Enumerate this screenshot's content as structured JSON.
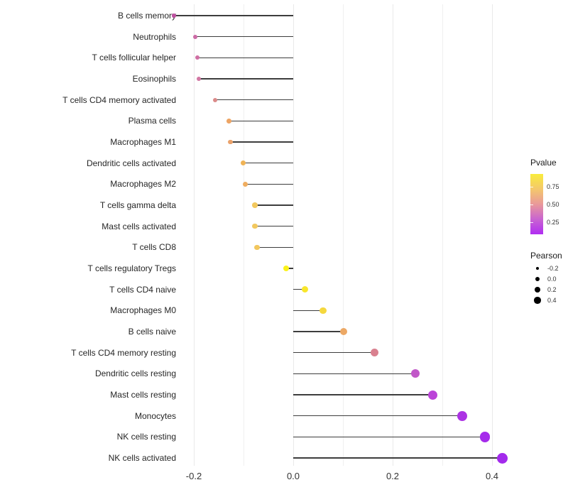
{
  "chart_data": {
    "type": "scatter",
    "style": "horizontal lollipop (stems from zero to point; point color = Pvalue, point size = Pearson)",
    "title": "",
    "xlabel": "",
    "ylabel": "",
    "xlim": [
      -0.27,
      0.47
    ],
    "grid": "vertical gridlines only, light gray, white background",
    "x_ticks": [
      {
        "label": "-0.2",
        "value": -0.2
      },
      {
        "label": "0.0",
        "value": 0.0
      },
      {
        "label": "0.2",
        "value": 0.2
      },
      {
        "label": "0.4",
        "value": 0.4
      }
    ],
    "grid_values": [
      -0.2,
      -0.1,
      0.0,
      0.1,
      0.2,
      0.3,
      0.4
    ],
    "categories": [
      "B cells memory",
      "Neutrophils",
      "T cells follicular helper",
      "Eosinophils",
      "T cells CD4 memory activated",
      "Plasma cells",
      "Macrophages M1",
      "Dendritic cells activated",
      "Macrophages M2",
      "T cells gamma delta",
      "Mast cells activated",
      "T cells CD8",
      "T cells regulatory  Tregs",
      "T cells CD4 naive",
      "Macrophages M0",
      "B cells naive",
      "T cells CD4 memory resting",
      "Dendritic cells resting",
      "Mast cells resting",
      "Monocytes",
      "NK cells resting",
      "NK cells activated"
    ],
    "series": [
      {
        "name": "Pearson",
        "values": [
          -0.24,
          -0.197,
          -0.193,
          -0.19,
          -0.157,
          -0.129,
          -0.126,
          -0.101,
          -0.097,
          -0.077,
          -0.077,
          -0.073,
          -0.014,
          0.024,
          0.06,
          0.101,
          0.164,
          0.246,
          0.281,
          0.34,
          0.386,
          0.421
        ]
      },
      {
        "name": "Pvalue (estimated from color scale)",
        "values": [
          0.3,
          0.36,
          0.37,
          0.38,
          0.47,
          0.58,
          0.57,
          0.65,
          0.63,
          0.72,
          0.72,
          0.71,
          0.93,
          0.88,
          0.8,
          0.6,
          0.45,
          0.25,
          0.2,
          0.12,
          0.08,
          0.06
        ]
      }
    ],
    "rows": [
      {
        "label": "B cells memory",
        "pearson": -0.24,
        "pvalue": 0.3,
        "color": "#BE51A0"
      },
      {
        "label": "Neutrophils",
        "pearson": -0.197,
        "pvalue": 0.36,
        "color": "#CC6BA6"
      },
      {
        "label": "T cells follicular helper",
        "pearson": -0.193,
        "pvalue": 0.37,
        "color": "#D06FA4"
      },
      {
        "label": "Eosinophils",
        "pearson": -0.19,
        "pvalue": 0.38,
        "color": "#D278A3"
      },
      {
        "label": "T cells CD4 memory activated",
        "pearson": -0.157,
        "pvalue": 0.47,
        "color": "#DB8A89"
      },
      {
        "label": "Plasma cells",
        "pearson": -0.129,
        "pvalue": 0.58,
        "color": "#EDA464"
      },
      {
        "label": "Macrophages M1",
        "pearson": -0.126,
        "pvalue": 0.57,
        "color": "#EAA26B"
      },
      {
        "label": "Dendritic cells activated",
        "pearson": -0.101,
        "pvalue": 0.65,
        "color": "#F0B355"
      },
      {
        "label": "Macrophages M2",
        "pearson": -0.097,
        "pvalue": 0.63,
        "color": "#EFAD60"
      },
      {
        "label": "T cells gamma delta",
        "pearson": -0.077,
        "pvalue": 0.72,
        "color": "#F2C85E"
      },
      {
        "label": "Mast cells activated",
        "pearson": -0.077,
        "pvalue": 0.72,
        "color": "#F2C85E"
      },
      {
        "label": "T cells CD8",
        "pearson": -0.073,
        "pvalue": 0.71,
        "color": "#F2C75E"
      },
      {
        "label": "T cells regulatory  Tregs",
        "pearson": -0.014,
        "pvalue": 0.93,
        "color": "#FBF21A"
      },
      {
        "label": "T cells CD4 naive",
        "pearson": 0.024,
        "pvalue": 0.88,
        "color": "#F8E62B"
      },
      {
        "label": "Macrophages M0",
        "pearson": 0.06,
        "pvalue": 0.8,
        "color": "#F5D83E"
      },
      {
        "label": "B cells naive",
        "pearson": 0.101,
        "pvalue": 0.6,
        "color": "#ECA865"
      },
      {
        "label": "T cells CD4 memory resting",
        "pearson": 0.164,
        "pvalue": 0.45,
        "color": "#D9808F"
      },
      {
        "label": "Dendritic cells resting",
        "pearson": 0.246,
        "pvalue": 0.25,
        "color": "#C158C8"
      },
      {
        "label": "Mast cells resting",
        "pearson": 0.281,
        "pvalue": 0.2,
        "color": "#BB44D8"
      },
      {
        "label": "Monocytes",
        "pearson": 0.34,
        "pvalue": 0.12,
        "color": "#AC33E4"
      },
      {
        "label": "NK cells resting",
        "pearson": 0.386,
        "pvalue": 0.08,
        "color": "#A52BEB"
      },
      {
        "label": "NK cells activated",
        "pearson": 0.421,
        "pvalue": 0.06,
        "color": "#A32AEC"
      }
    ],
    "legend": {
      "position": "right",
      "pvalue_title": "Pvalue",
      "pvalue_ticks": [
        "0.75",
        "0.50",
        "0.25"
      ],
      "pvalue_gradient": [
        "#F9EC3C",
        "#F4C86C",
        "#E9999A",
        "#C964D0",
        "#B02DF2"
      ],
      "pearson_title": "Pearson",
      "size_keys": [
        {
          "label": "-0.2",
          "diameter": 4
        },
        {
          "label": "0.0",
          "diameter": 6.5
        },
        {
          "label": "0.2",
          "diameter": 8
        },
        {
          "label": "0.4",
          "diameter": 9.5
        }
      ]
    }
  }
}
